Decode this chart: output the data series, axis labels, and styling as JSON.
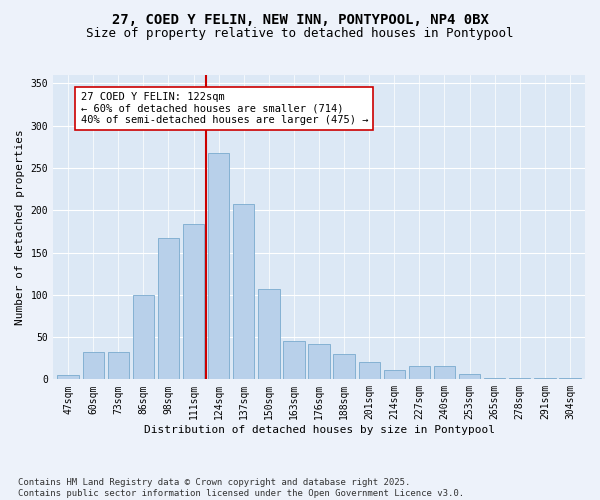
{
  "title_line1": "27, COED Y FELIN, NEW INN, PONTYPOOL, NP4 0BX",
  "title_line2": "Size of property relative to detached houses in Pontypool",
  "xlabel": "Distribution of detached houses by size in Pontypool",
  "ylabel": "Number of detached properties",
  "categories": [
    "47sqm",
    "60sqm",
    "73sqm",
    "86sqm",
    "98sqm",
    "111sqm",
    "124sqm",
    "137sqm",
    "150sqm",
    "163sqm",
    "176sqm",
    "188sqm",
    "201sqm",
    "214sqm",
    "227sqm",
    "240sqm",
    "253sqm",
    "265sqm",
    "278sqm",
    "291sqm",
    "304sqm"
  ],
  "values": [
    5,
    32,
    32,
    100,
    167,
    184,
    268,
    207,
    107,
    45,
    42,
    30,
    20,
    11,
    16,
    16,
    6,
    2,
    1,
    2,
    1
  ],
  "bar_color": "#b8d0ea",
  "bar_edge_color": "#7aaace",
  "vline_x_index": 6,
  "vline_color": "#cc0000",
  "annotation_text": "27 COED Y FELIN: 122sqm\n← 60% of detached houses are smaller (714)\n40% of semi-detached houses are larger (475) →",
  "annotation_box_color": "#ffffff",
  "annotation_box_edge": "#cc0000",
  "ylim": [
    0,
    360
  ],
  "yticks": [
    0,
    50,
    100,
    150,
    200,
    250,
    300,
    350
  ],
  "bg_color": "#dce8f5",
  "fig_bg_color": "#edf2fa",
  "footnote": "Contains HM Land Registry data © Crown copyright and database right 2025.\nContains public sector information licensed under the Open Government Licence v3.0.",
  "title_fontsize": 10,
  "subtitle_fontsize": 9,
  "axis_label_fontsize": 8,
  "tick_fontsize": 7,
  "annotation_fontsize": 7.5,
  "footnote_fontsize": 6.5
}
